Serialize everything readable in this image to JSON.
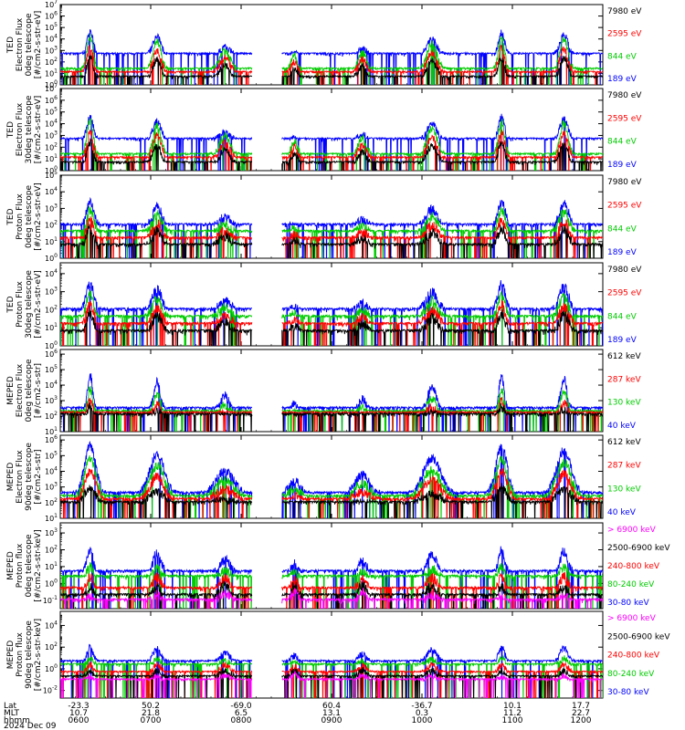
{
  "chart_data": {
    "type": "line",
    "x_axis": {
      "rows": [
        {
          "label": "Lat",
          "values": [
            "-23.3",
            "50.2",
            "-69.0",
            "60.4",
            "-36.7",
            "10.1",
            "17.7"
          ]
        },
        {
          "label": "MLT",
          "values": [
            "10.7",
            "21.8",
            "6.5",
            "13.1",
            "0.3",
            "11.2",
            "22.7"
          ]
        },
        {
          "label": "hhmm",
          "values": [
            "0600",
            "0700",
            "0800",
            "0900",
            "1000",
            "1100",
            "1200"
          ]
        }
      ],
      "date": "2024 Dec 09",
      "x_range": [
        "0600",
        "1200"
      ]
    },
    "panels": [
      {
        "ylabel": [
          "TED",
          "Electron Flux",
          "0deg telescope",
          "[#/cm2-s-str-eV]"
        ],
        "yticks": [
          0,
          1,
          2,
          3,
          4,
          5,
          6,
          7
        ],
        "ylim_log10": [
          0,
          7
        ],
        "legend": [
          {
            "name": "7980 eV",
            "color": "#000000"
          },
          {
            "name": "2595 eV",
            "color": "#ff0000"
          },
          {
            "name": "844 eV",
            "color": "#00cc00"
          },
          {
            "name": "189 eV",
            "color": "#0000ff"
          }
        ]
      },
      {
        "ylabel": [
          "TED",
          "Electron Flux",
          "30deg telescope",
          "[#/cm2-s-str-eV]"
        ],
        "yticks": [
          0,
          1,
          2,
          3,
          4,
          5,
          6,
          7
        ],
        "ylim_log10": [
          0,
          7
        ],
        "legend": [
          {
            "name": "7980 eV",
            "color": "#000000"
          },
          {
            "name": "2595 eV",
            "color": "#ff0000"
          },
          {
            "name": "844 eV",
            "color": "#00cc00"
          },
          {
            "name": "189 eV",
            "color": "#0000ff"
          }
        ]
      },
      {
        "ylabel": [
          "TED",
          "Proton Flux",
          "0deg telescope",
          "[#/cm2-s-str-eV]"
        ],
        "yticks": [
          0,
          1,
          2,
          3,
          4,
          5
        ],
        "ylim_log10": [
          0,
          5
        ],
        "legend": [
          {
            "name": "7980 eV",
            "color": "#000000"
          },
          {
            "name": "2595 eV",
            "color": "#ff0000"
          },
          {
            "name": "844 eV",
            "color": "#00cc00"
          },
          {
            "name": "189 eV",
            "color": "#0000ff"
          }
        ]
      },
      {
        "ylabel": [
          "TED",
          "Proton Flux",
          "30deg telescope",
          "[#/cm2-s-str-eV]"
        ],
        "yticks": [
          0,
          1,
          2,
          3,
          4
        ],
        "ylim_log10": [
          0,
          4.6
        ],
        "legend": [
          {
            "name": "7980 eV",
            "color": "#000000"
          },
          {
            "name": "2595 eV",
            "color": "#ff0000"
          },
          {
            "name": "844 eV",
            "color": "#00cc00"
          },
          {
            "name": "189 eV",
            "color": "#0000ff"
          }
        ]
      },
      {
        "ylabel": [
          "MEPED",
          "Electron Flux",
          "0deg telescope",
          "[#/cm2-s-str]"
        ],
        "yticks": [
          1,
          2,
          3,
          4,
          5,
          6
        ],
        "ylim_log10": [
          1,
          6.3
        ],
        "legend": [
          {
            "name": "612 keV",
            "color": "#000000"
          },
          {
            "name": "287 keV",
            "color": "#ff0000"
          },
          {
            "name": "130 keV",
            "color": "#00cc00"
          },
          {
            "name": "40 keV",
            "color": "#0000ff"
          }
        ]
      },
      {
        "ylabel": [
          "MEPED",
          "Electron Flux",
          "90deg telescope",
          "[#/cm2-s-str]"
        ],
        "yticks": [
          1,
          2,
          3,
          4,
          5,
          6
        ],
        "ylim_log10": [
          1,
          6.3
        ],
        "legend": [
          {
            "name": "612 keV",
            "color": "#000000"
          },
          {
            "name": "287 keV",
            "color": "#ff0000"
          },
          {
            "name": "130 keV",
            "color": "#00cc00"
          },
          {
            "name": "40 keV",
            "color": "#0000ff"
          }
        ]
      },
      {
        "ylabel": [
          "MEPED",
          "Proton flux",
          "0deg telescope",
          "[#/cm2-s-str-keV]"
        ],
        "yticks": [
          -1,
          0,
          1,
          2,
          3
        ],
        "ylim_log10": [
          -1.5,
          3.6
        ],
        "legend": [
          {
            "name": "> 6900 keV",
            "color": "#ff00ff"
          },
          {
            "name": "2500-6900 keV",
            "color": "#000000"
          },
          {
            "name": "240-800 keV",
            "color": "#ff0000"
          },
          {
            "name": "80-240 keV",
            "color": "#00cc00"
          },
          {
            "name": "30-80 keV",
            "color": "#0000ff"
          }
        ]
      },
      {
        "ylabel": [
          "MEPED",
          "Proton flux",
          "90deg telescope",
          "[#/cm2-s-str-keV]"
        ],
        "yticks": [
          -2,
          0,
          2,
          4
        ],
        "ylim_log10": [
          -2.7,
          5.3
        ],
        "legend": [
          {
            "name": "> 6900 keV",
            "color": "#ff00ff"
          },
          {
            "name": "2500-6900 keV",
            "color": "#000000"
          },
          {
            "name": "240-800 keV",
            "color": "#ff0000"
          },
          {
            "name": "80-240 keV",
            "color": "#00cc00"
          },
          {
            "name": "30-80 keV",
            "color": "#0000ff"
          }
        ]
      }
    ]
  }
}
